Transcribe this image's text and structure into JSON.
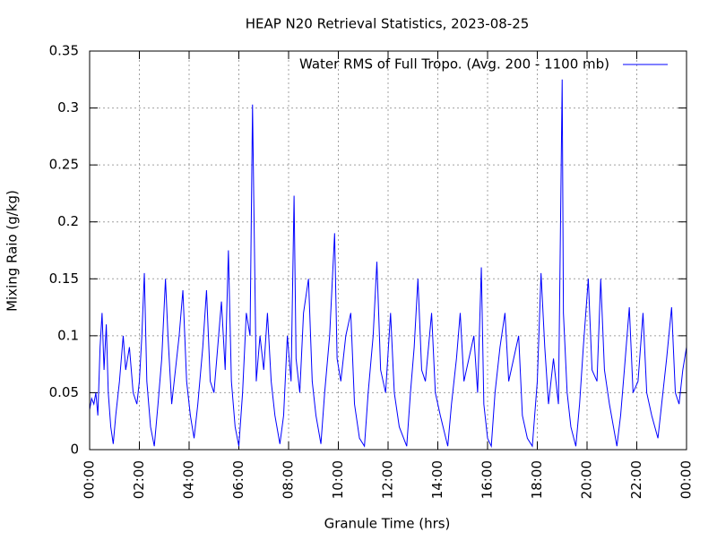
{
  "chart_data": {
    "type": "line",
    "title": "HEAP N20 Retrieval Statistics, 2023-08-25",
    "xlabel": "Granule Time (hrs)",
    "ylabel": "Mixing Raio (g/kg)",
    "xlim": [
      0,
      24
    ],
    "ylim": [
      0,
      0.35
    ],
    "xticks": [
      {
        "value": 0,
        "label": "00:00"
      },
      {
        "value": 2,
        "label": "02:00"
      },
      {
        "value": 4,
        "label": "04:00"
      },
      {
        "value": 6,
        "label": "06:00"
      },
      {
        "value": 8,
        "label": "08:00"
      },
      {
        "value": 10,
        "label": "10:00"
      },
      {
        "value": 12,
        "label": "12:00"
      },
      {
        "value": 14,
        "label": "14:00"
      },
      {
        "value": 16,
        "label": "16:00"
      },
      {
        "value": 18,
        "label": "18:00"
      },
      {
        "value": 20,
        "label": "20:00"
      },
      {
        "value": 22,
        "label": "22:00"
      },
      {
        "value": 24,
        "label": "00:00"
      }
    ],
    "yticks": [
      0,
      0.05,
      0.1,
      0.15,
      0.2,
      0.25,
      0.3,
      0.35
    ],
    "grid": true,
    "legend_position": "top-right",
    "x": [
      0,
      0.08,
      0.17,
      0.25,
      0.33,
      0.42,
      0.5,
      0.58,
      0.67,
      0.75,
      0.85,
      0.95,
      1.05,
      1.2,
      1.35,
      1.45,
      1.6,
      1.75,
      1.9,
      2.0,
      2.1,
      2.2,
      2.3,
      2.45,
      2.6,
      2.75,
      2.9,
      3.05,
      3.15,
      3.3,
      3.45,
      3.6,
      3.75,
      3.9,
      4.05,
      4.2,
      4.35,
      4.55,
      4.7,
      4.85,
      5.0,
      5.15,
      5.3,
      5.45,
      5.58,
      5.7,
      5.85,
      6.0,
      6.15,
      6.3,
      6.45,
      6.55,
      6.6,
      6.7,
      6.85,
      7.0,
      7.15,
      7.3,
      7.45,
      7.65,
      7.8,
      7.95,
      8.1,
      8.22,
      8.3,
      8.45,
      8.6,
      8.8,
      8.95,
      9.1,
      9.3,
      9.45,
      9.65,
      9.85,
      9.95,
      10.1,
      10.3,
      10.5,
      10.65,
      10.85,
      11.05,
      11.2,
      11.4,
      11.55,
      11.7,
      11.9,
      12.1,
      12.25,
      12.45,
      12.75,
      12.9,
      13.05,
      13.2,
      13.35,
      13.5,
      13.75,
      13.9,
      14.1,
      14.4,
      14.55,
      14.75,
      14.9,
      15.05,
      15.25,
      15.45,
      15.6,
      15.75,
      15.85,
      16.0,
      16.15,
      16.3,
      16.5,
      16.7,
      16.85,
      17.05,
      17.25,
      17.4,
      17.6,
      17.8,
      18.0,
      18.15,
      18.3,
      18.45,
      18.65,
      18.85,
      19.0,
      19.05,
      19.2,
      19.35,
      19.55,
      19.7,
      19.85,
      20.05,
      20.2,
      20.4,
      20.55,
      20.7,
      20.9,
      21.2,
      21.35,
      21.5,
      21.7,
      21.85,
      22.05,
      22.25,
      22.4,
      22.6,
      22.85,
      23.0,
      23.2,
      23.4,
      23.55,
      23.7,
      23.85,
      24.0
    ],
    "series": [
      {
        "name": "Water RMS of Full Tropo. (Avg. 200 - 1100 mb)",
        "color": "#0000ff",
        "values": [
          0.035,
          0.045,
          0.04,
          0.05,
          0.03,
          0.09,
          0.12,
          0.07,
          0.11,
          0.05,
          0.02,
          0.005,
          0.03,
          0.06,
          0.1,
          0.07,
          0.09,
          0.05,
          0.04,
          0.06,
          0.1,
          0.155,
          0.06,
          0.02,
          0.003,
          0.04,
          0.08,
          0.15,
          0.1,
          0.04,
          0.07,
          0.1,
          0.14,
          0.06,
          0.03,
          0.01,
          0.04,
          0.09,
          0.14,
          0.06,
          0.05,
          0.09,
          0.13,
          0.07,
          0.175,
          0.06,
          0.02,
          0.003,
          0.05,
          0.12,
          0.1,
          0.303,
          0.22,
          0.06,
          0.1,
          0.07,
          0.12,
          0.06,
          0.03,
          0.005,
          0.03,
          0.1,
          0.06,
          0.223,
          0.08,
          0.05,
          0.12,
          0.15,
          0.06,
          0.03,
          0.005,
          0.05,
          0.1,
          0.19,
          0.08,
          0.06,
          0.1,
          0.12,
          0.04,
          0.01,
          0.003,
          0.05,
          0.1,
          0.165,
          0.07,
          0.05,
          0.12,
          0.05,
          0.02,
          0.003,
          0.05,
          0.09,
          0.15,
          0.07,
          0.06,
          0.12,
          0.05,
          0.03,
          0.003,
          0.04,
          0.08,
          0.12,
          0.06,
          0.08,
          0.1,
          0.05,
          0.16,
          0.04,
          0.01,
          0.003,
          0.05,
          0.09,
          0.12,
          0.06,
          0.08,
          0.1,
          0.03,
          0.01,
          0.003,
          0.06,
          0.155,
          0.09,
          0.04,
          0.08,
          0.04,
          0.325,
          0.12,
          0.05,
          0.02,
          0.003,
          0.04,
          0.09,
          0.15,
          0.07,
          0.06,
          0.15,
          0.07,
          0.04,
          0.003,
          0.03,
          0.07,
          0.125,
          0.05,
          0.06,
          0.12,
          0.05,
          0.03,
          0.01,
          0.04,
          0.08,
          0.125,
          0.05,
          0.04,
          0.07,
          0.09
        ]
      }
    ]
  }
}
